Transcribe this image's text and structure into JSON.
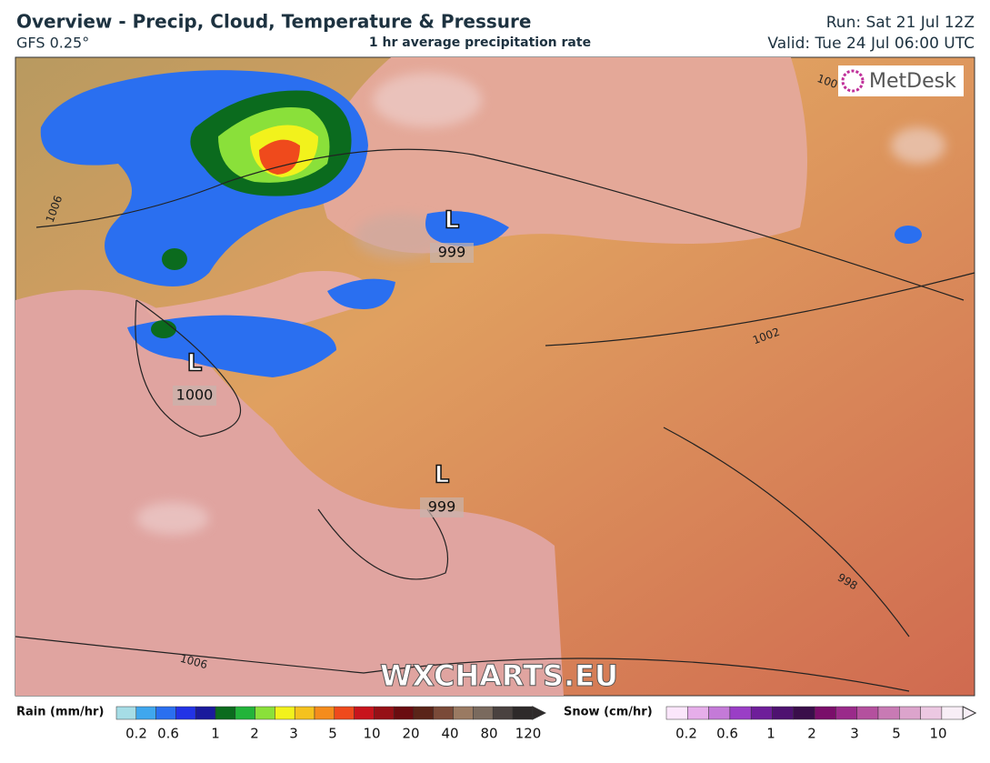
{
  "header": {
    "title": "Overview - Precip, Cloud, Temperature & Pressure",
    "model": "GFS 0.25°",
    "product": "1 hr average precipitation rate",
    "run": "Run: Sat 21 Jul 12Z",
    "valid": "Valid: Tue 24 Jul 06:00 UTC"
  },
  "map": {
    "logo": "MetDesk",
    "watermark": "WXCHARTS.EU",
    "lows": [
      {
        "symbol": "L",
        "pressure": 999
      },
      {
        "symbol": "L",
        "pressure": 1000
      },
      {
        "symbol": "L",
        "pressure": 999
      }
    ],
    "isobar_labels": [
      1006,
      1002,
      998,
      1006,
      100
    ]
  },
  "legend": {
    "rain": {
      "title": "Rain (mm/hr)",
      "ticks": [
        0.2,
        0.6,
        1,
        2,
        3,
        5,
        10,
        20,
        40,
        80,
        120
      ],
      "colors": [
        "#a6dde6",
        "#3fa7ee",
        "#2a6ff0",
        "#2233e6",
        "#1a1a9c",
        "#0b6b1e",
        "#22b43a",
        "#8ae03a",
        "#f2f21c",
        "#f5c21e",
        "#f58c1c",
        "#ef4a1c",
        "#c8141c",
        "#961016",
        "#6a0c10",
        "#5a2418",
        "#7a4a38",
        "#9a7a62",
        "#7a6a5e",
        "#4a4240",
        "#2e2a2a"
      ]
    },
    "snow": {
      "title": "Snow (cm/hr)",
      "ticks": [
        0.2,
        0.6,
        1,
        2,
        3,
        5,
        10
      ],
      "colors": [
        "#fbe6fb",
        "#e6aeea",
        "#c47ad8",
        "#9a3ec6",
        "#6e1e9a",
        "#4e1270",
        "#3a0e4a",
        "#7a0e6a",
        "#9a2a8a",
        "#b4509e",
        "#c87ab4",
        "#dca4cc",
        "#ecc8e2",
        "#f8eef6"
      ]
    }
  }
}
